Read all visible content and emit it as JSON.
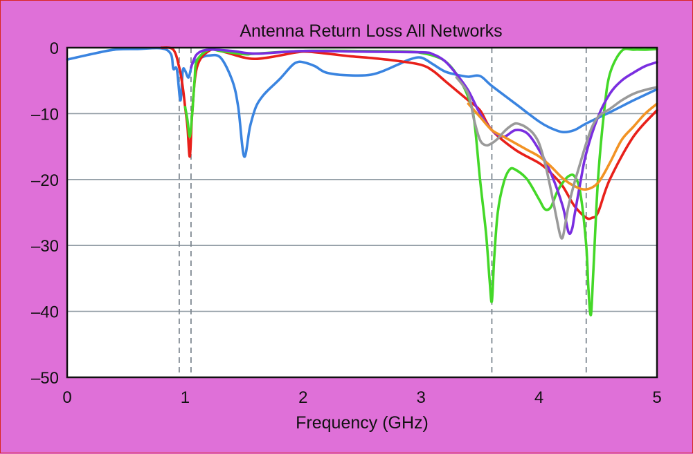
{
  "chart_data": {
    "type": "line",
    "title": "Antenna Return Loss All Networks",
    "xlabel": "Frequency (GHz)",
    "ylabel": "",
    "xlim": [
      0,
      5
    ],
    "ylim": [
      -50,
      0
    ],
    "xticks": [
      "0",
      "1",
      "2",
      "3",
      "4",
      "5"
    ],
    "yticks": [
      "0",
      "–10",
      "–20",
      "–30",
      "–40",
      "–50"
    ],
    "grid": "horizontal",
    "vertical_markers": [
      0.95,
      1.05,
      3.6,
      4.4
    ],
    "series": [
      {
        "color": "#3a84e0",
        "x": [
          0,
          0.2,
          0.4,
          0.6,
          0.8,
          0.88,
          0.9,
          0.93,
          0.96,
          0.98,
          1.0,
          1.03,
          1.06,
          1.1,
          1.15,
          1.2,
          1.3,
          1.4,
          1.45,
          1.5,
          1.55,
          1.6,
          1.65,
          1.7,
          1.8,
          1.9,
          1.95,
          2.0,
          2.1,
          2.2,
          2.4,
          2.6,
          2.8,
          2.9,
          3.0,
          3.1,
          3.2,
          3.3,
          3.4,
          3.5,
          3.6,
          3.8,
          4.0,
          4.1,
          4.2,
          4.3,
          4.4,
          4.6,
          4.8,
          5.0
        ],
        "values": [
          -1.8,
          -1.0,
          -0.3,
          -0.2,
          -0.1,
          -1.0,
          -3.2,
          -3.3,
          -8.0,
          -3.5,
          -3.5,
          -4.5,
          -2.5,
          -1.8,
          -1.4,
          -1.2,
          -1.5,
          -5.0,
          -9.0,
          -16.5,
          -12.0,
          -9.0,
          -7.5,
          -6.5,
          -4.8,
          -2.8,
          -2.2,
          -2.2,
          -2.8,
          -3.8,
          -4.2,
          -4.0,
          -2.6,
          -1.8,
          -1.5,
          -2.5,
          -3.6,
          -4.1,
          -4.4,
          -4.3,
          -5.8,
          -8.5,
          -11.2,
          -12.2,
          -12.8,
          -12.5,
          -11.5,
          -9.8,
          -8.0,
          -6.3
        ]
      },
      {
        "color": "#e8201a",
        "x": [
          0,
          0.8,
          0.9,
          0.95,
          0.98,
          1.0,
          1.02,
          1.04,
          1.06,
          1.1,
          1.2,
          1.3,
          1.5,
          1.6,
          1.7,
          1.8,
          2.0,
          2.2,
          2.4,
          2.6,
          2.8,
          3.0,
          3.1,
          3.2,
          3.3,
          3.4,
          3.5,
          3.6,
          3.8,
          4.0,
          4.1,
          4.2,
          4.3,
          4.4,
          4.45,
          4.5,
          4.6,
          4.8,
          5.0
        ],
        "values": [
          null,
          0,
          -0.3,
          -3.0,
          -6.0,
          -9.0,
          -12.0,
          -16.5,
          -10.0,
          -3.0,
          -0.5,
          -0.5,
          -1.5,
          -1.7,
          -1.5,
          -1.2,
          -0.6,
          -0.9,
          -1.3,
          -1.6,
          -2.0,
          -2.6,
          -3.5,
          -5.0,
          -6.5,
          -8.0,
          -9.5,
          -12.5,
          -15.5,
          -17.5,
          -19.0,
          -21.0,
          -24.0,
          -25.8,
          -25.8,
          -25.0,
          -20.0,
          -13.5,
          -9.5
        ]
      },
      {
        "color": "#44d828",
        "x": [
          1.0,
          1.02,
          1.04,
          1.06,
          1.08,
          1.1,
          1.2,
          1.3,
          1.5,
          1.6,
          2.0,
          2.5,
          2.9,
          3.0,
          3.1,
          3.2,
          3.3,
          3.4,
          3.45,
          3.5,
          3.55,
          3.58,
          3.6,
          3.62,
          3.65,
          3.7,
          3.75,
          3.8,
          3.9,
          4.0,
          4.05,
          4.1,
          4.15,
          4.2,
          4.25,
          4.3,
          4.35,
          4.4,
          4.42,
          4.44,
          4.46,
          4.5,
          4.55,
          4.6,
          4.7,
          4.8,
          4.9,
          5.0
        ],
        "values": [
          -9.0,
          -11.0,
          -13.5,
          -10.0,
          -5.0,
          -2.0,
          -0.3,
          -0.5,
          -1.0,
          -0.9,
          -0.5,
          -0.5,
          -0.6,
          -0.8,
          -1.2,
          -2.0,
          -4.0,
          -7.5,
          -11.0,
          -20.0,
          -28.0,
          -35.0,
          -38.5,
          -32.0,
          -25.0,
          -20.5,
          -18.5,
          -18.5,
          -20.0,
          -23.0,
          -24.5,
          -24.2,
          -22.0,
          -20.5,
          -19.5,
          -19.5,
          -22.0,
          -30.0,
          -37.0,
          -40.5,
          -34.0,
          -20.0,
          -10.0,
          -4.0,
          -0.5,
          -0.3,
          -0.3,
          -0.2
        ]
      },
      {
        "color": "#7a2ee0",
        "x": [
          1.05,
          1.1,
          1.2,
          1.4,
          1.6,
          2.0,
          2.5,
          3.0,
          3.1,
          3.2,
          3.3,
          3.4,
          3.5,
          3.6,
          3.7,
          3.8,
          3.9,
          4.0,
          4.1,
          4.2,
          4.25,
          4.28,
          4.3,
          4.35,
          4.4,
          4.5,
          4.6,
          4.7,
          4.8,
          4.9,
          5.0
        ],
        "values": [
          -3.0,
          -1.0,
          -0.3,
          -0.5,
          -0.9,
          -0.5,
          -0.6,
          -0.7,
          -1.0,
          -2.0,
          -4.0,
          -6.5,
          -10.0,
          -12.5,
          -13.5,
          -12.5,
          -13.0,
          -15.5,
          -19.0,
          -24.0,
          -28.0,
          -27.5,
          -25.5,
          -20.5,
          -16.0,
          -10.5,
          -7.0,
          -5.0,
          -3.8,
          -2.8,
          -2.2
        ]
      },
      {
        "color": "#f29324",
        "x": [
          3.4,
          3.5,
          3.6,
          3.7,
          3.8,
          3.9,
          4.0,
          4.1,
          4.2,
          4.3,
          4.4,
          4.5,
          4.6,
          4.7,
          4.8,
          4.9,
          5.0
        ],
        "values": [
          -8.5,
          -10.5,
          -12.5,
          -13.5,
          -14.5,
          -15.5,
          -16.5,
          -18.0,
          -19.8,
          -21.0,
          -21.5,
          -20.5,
          -17.5,
          -14.0,
          -12.0,
          -10.0,
          -8.5
        ]
      },
      {
        "color": "#9a9a9a",
        "x": [
          3.3,
          3.4,
          3.45,
          3.5,
          3.55,
          3.6,
          3.65,
          3.7,
          3.75,
          3.8,
          3.85,
          3.9,
          3.95,
          4.0,
          4.05,
          4.1,
          4.15,
          4.18,
          4.2,
          4.22,
          4.25,
          4.3,
          4.35,
          4.4,
          4.45,
          4.5,
          4.55,
          4.6,
          4.7,
          4.8,
          4.9,
          5.0
        ],
        "values": [
          -4.5,
          -7.0,
          -11.0,
          -14.0,
          -14.8,
          -14.5,
          -13.8,
          -12.8,
          -12.0,
          -11.5,
          -11.7,
          -12.2,
          -13.0,
          -14.5,
          -17.5,
          -21.5,
          -26.0,
          -28.5,
          -28.8,
          -27.0,
          -24.0,
          -20.5,
          -17.5,
          -14.5,
          -12.0,
          -10.5,
          -9.8,
          -9.3,
          -8.0,
          -7.0,
          -6.4,
          -6.0
        ]
      }
    ]
  }
}
